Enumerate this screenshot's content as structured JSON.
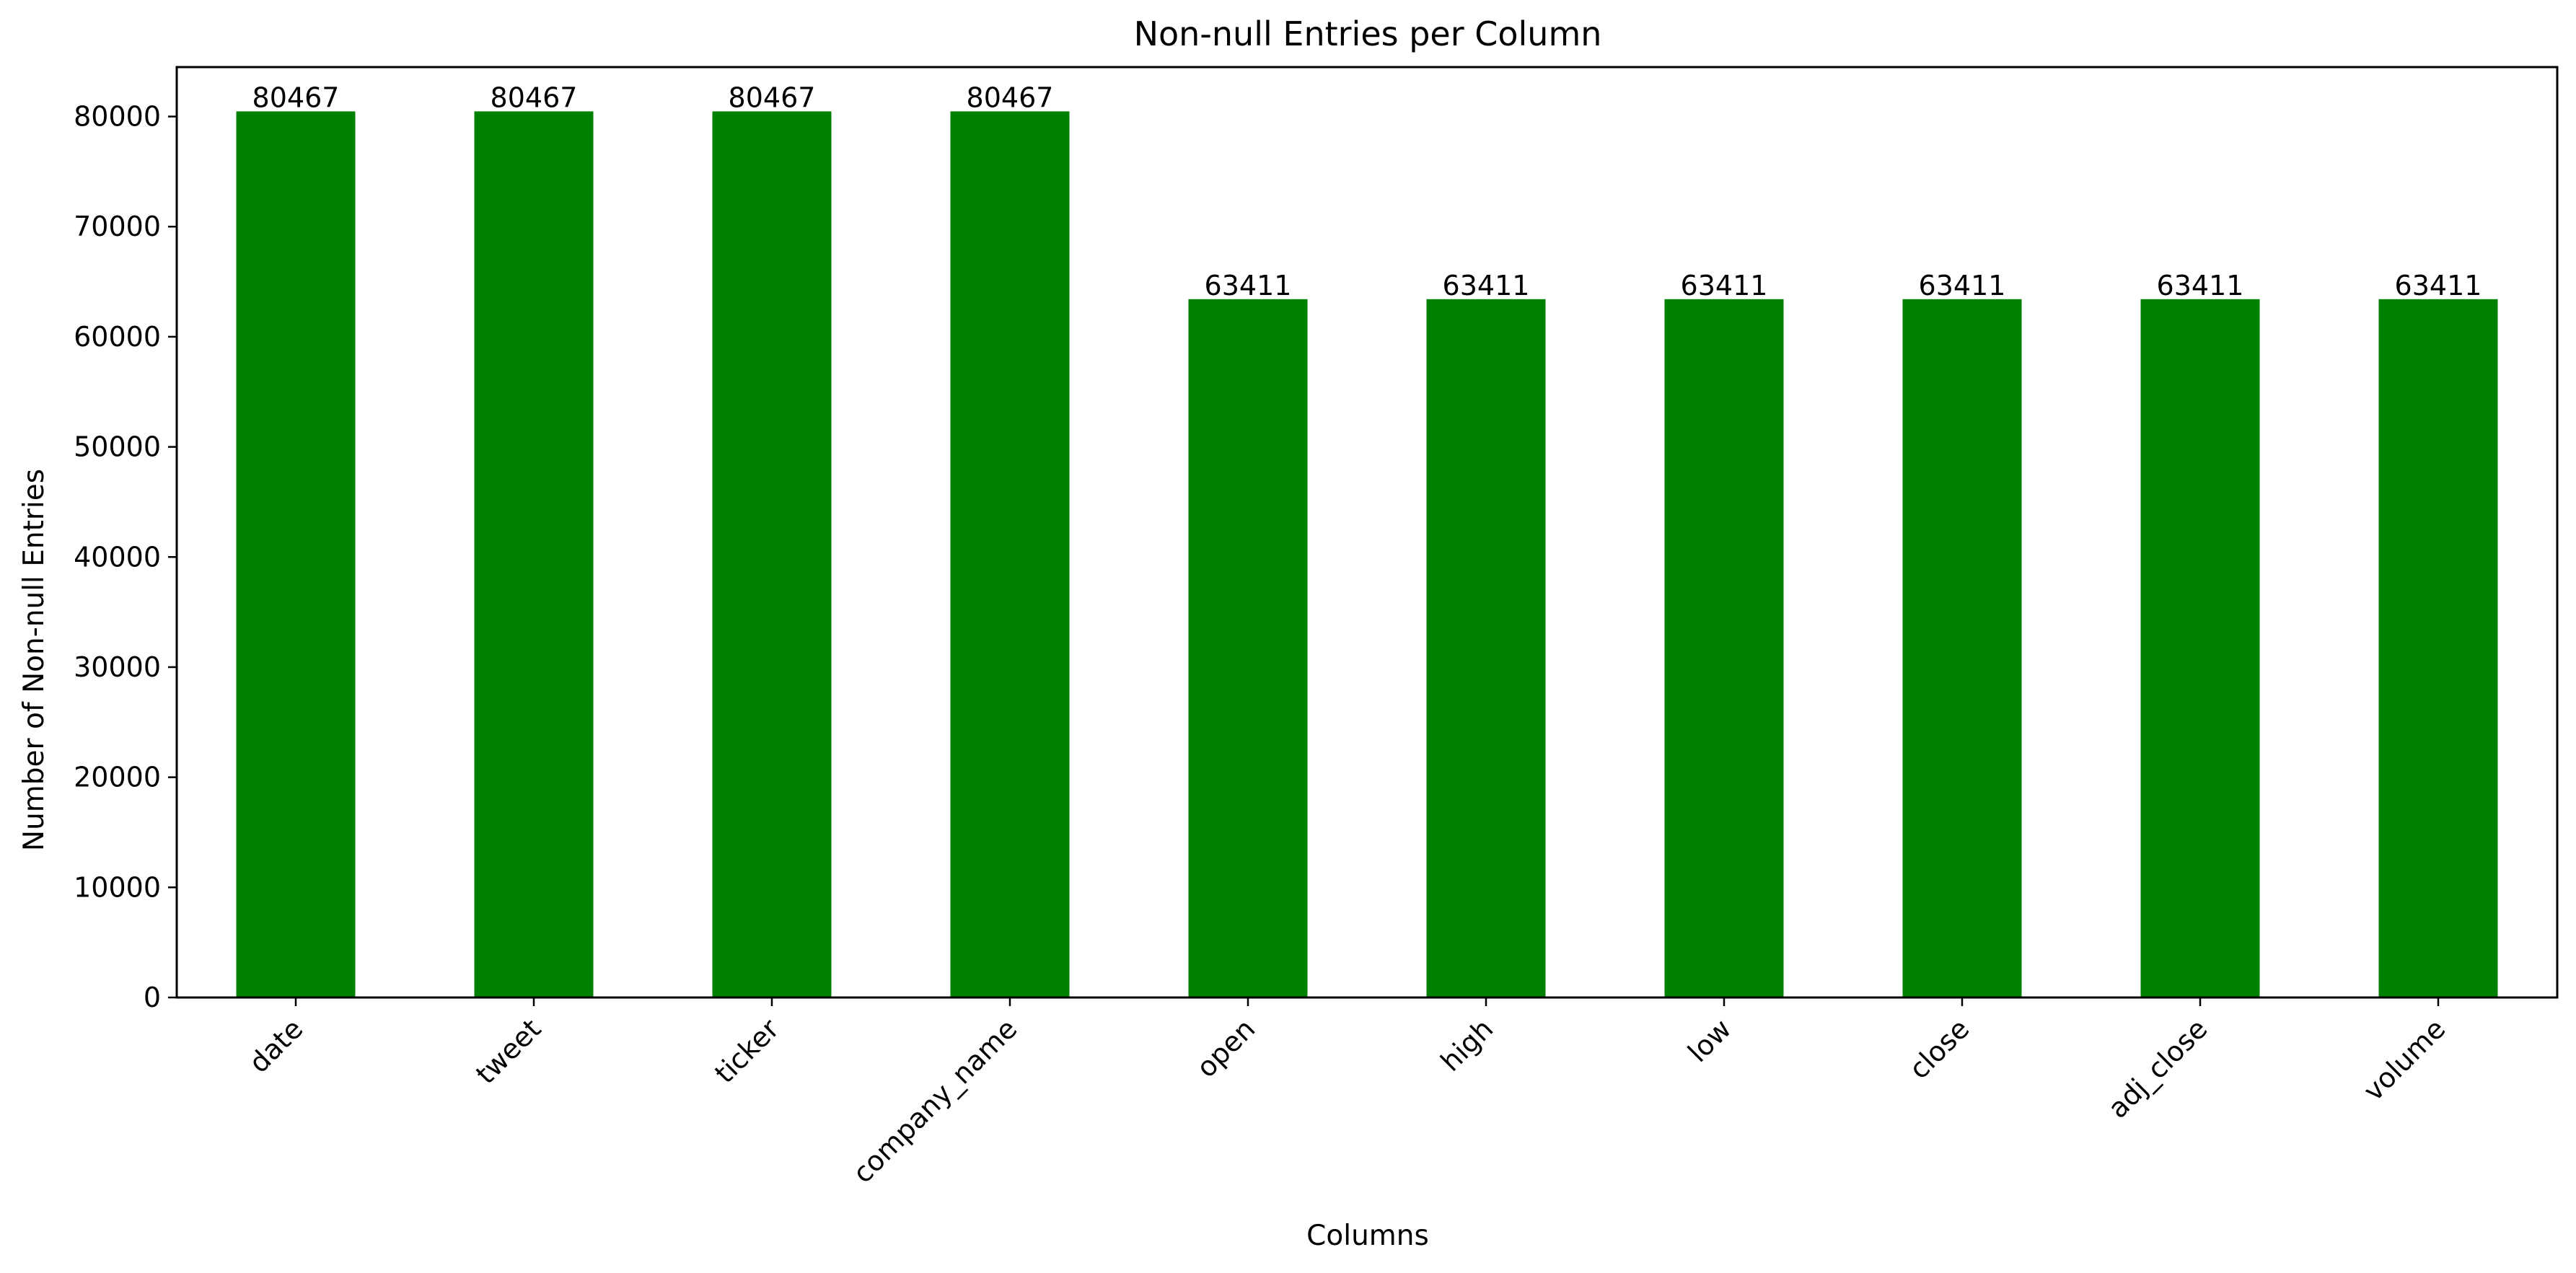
{
  "chart_data": {
    "type": "bar",
    "title": "Non-null Entries per Column",
    "xlabel": "Columns",
    "ylabel": "Number of Non-null Entries",
    "categories": [
      "date",
      "tweet",
      "ticker",
      "company_name",
      "open",
      "high",
      "low",
      "close",
      "adj_close",
      "volume"
    ],
    "values": [
      80467,
      80467,
      80467,
      80467,
      63411,
      63411,
      63411,
      63411,
      63411,
      63411
    ],
    "data_labels": [
      "80467",
      "80467",
      "80467",
      "80467",
      "63411",
      "63411",
      "63411",
      "63411",
      "63411",
      "63411"
    ],
    "yticks": [
      0,
      10000,
      20000,
      30000,
      40000,
      50000,
      60000,
      70000,
      80000
    ],
    "ytick_labels": [
      "0",
      "10000",
      "20000",
      "30000",
      "40000",
      "50000",
      "60000",
      "70000",
      "80000"
    ],
    "ylim": [
      0,
      84490
    ],
    "bar_color": "#008000",
    "grid": false,
    "legend": "none"
  }
}
